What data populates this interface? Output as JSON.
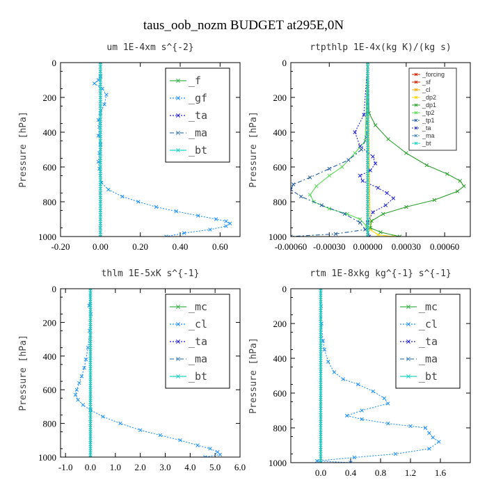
{
  "page": {
    "title": "taus_oob_nozm  BUDGET at295E,0N"
  },
  "chart_data": [
    {
      "type": "line",
      "title": "um   1E-4xm s^{-2}",
      "ylabel": "Pressure [hPa]",
      "xlim": [
        -0.2,
        0.7
      ],
      "ylim": [
        1000,
        0
      ],
      "xticks": [
        "-0.20",
        "0.00",
        "0.20",
        "0.40",
        "0.60"
      ],
      "xtick_values": [
        -0.2,
        0.0,
        0.2,
        0.4,
        0.6
      ],
      "yticks": [
        "0",
        "200",
        "400",
        "600",
        "800",
        "1000"
      ],
      "ytick_values": [
        0,
        200,
        400,
        600,
        800,
        1000
      ],
      "legend": {
        "placement": "top-right",
        "style": "big",
        "entries": [
          "_f",
          "_gf",
          "_ta",
          "_ma",
          "_bt"
        ]
      },
      "series": [
        {
          "name": "_f",
          "color": "#3cb34a",
          "style": "solid",
          "x": [
            0,
            0
          ],
          "y": [
            0,
            1000
          ]
        },
        {
          "name": "_gf",
          "color": "#1e90ff",
          "style": "dotted",
          "x": [
            0.0,
            0.0,
            -0.01,
            -0.03,
            0.01,
            0.03,
            0.02,
            0.0,
            -0.01,
            -0.005,
            -0.01,
            0.0,
            -0.005,
            -0.01,
            -0.005,
            0.0,
            0.005,
            0.04,
            0.11,
            0.19,
            0.28,
            0.38,
            0.49,
            0.58,
            0.63,
            0.65,
            0.63,
            0.55,
            0.42,
            0.33
          ],
          "y": [
            0,
            80,
            100,
            120,
            150,
            185,
            240,
            290,
            330,
            370,
            420,
            470,
            520,
            570,
            610,
            650,
            690,
            730,
            770,
            800,
            830,
            855,
            880,
            900,
            912,
            925,
            940,
            960,
            980,
            1000
          ]
        },
        {
          "name": "_ta",
          "color": "#2222dd",
          "style": "dotted",
          "x": [
            0,
            0
          ],
          "y": [
            0,
            1000
          ]
        },
        {
          "name": "_ma",
          "color": "#4682b4",
          "style": "dashdot",
          "x": [
            0,
            0
          ],
          "y": [
            0,
            1000
          ]
        },
        {
          "name": "_bt",
          "color": "#22d3c5",
          "style": "solid",
          "x": [
            0,
            0
          ],
          "y": [
            0,
            1000
          ]
        }
      ]
    },
    {
      "type": "line",
      "title": "rtpthlp   1E-4x(kg K)/(kg s)",
      "ylabel": "Pressure [hPa]",
      "xlim": [
        -0.0006,
        0.0008
      ],
      "ylim": [
        1000,
        0
      ],
      "xticks": [
        "-0.00060",
        "-0.00030",
        "0.00000",
        "0.00030",
        "0.00060"
      ],
      "xtick_values": [
        -0.0006,
        -0.0003,
        0.0,
        0.0003,
        0.0006
      ],
      "yticks": [
        "0",
        "200",
        "400",
        "600",
        "800",
        "1000"
      ],
      "ytick_values": [
        0,
        200,
        400,
        600,
        800,
        1000
      ],
      "legend": {
        "placement": "top-right",
        "style": "small",
        "entries": [
          "_forcing",
          "_sf",
          "_cl",
          "_dp2",
          "_dp1",
          "_tp2",
          "_tp1",
          "_ta",
          "_ma",
          "_bt"
        ]
      },
      "series": [
        {
          "name": "_forcing",
          "color": "#cc2200",
          "style": "solid",
          "x": [
            0,
            0
          ],
          "y": [
            0,
            1000
          ]
        },
        {
          "name": "_sf",
          "color": "#cc2200",
          "style": "solid",
          "x": [
            0,
            0
          ],
          "y": [
            0,
            1000
          ]
        },
        {
          "name": "_cl",
          "color": "#ffa500",
          "style": "solid",
          "x": [
            0,
            0
          ],
          "y": [
            0,
            1000
          ]
        },
        {
          "name": "_dp2",
          "color": "#ffd700",
          "style": "solid",
          "x": [
            0,
            2e-05,
            8e-05,
            0.0002
          ],
          "y": [
            0,
            960,
            990,
            1000
          ]
        },
        {
          "name": "_dp1",
          "color": "#2ca02c",
          "style": "solid",
          "x": [
            0,
            1e-05,
            6e-05,
            0.00016,
            0.0003,
            0.00046,
            0.00062,
            0.00072,
            0.00075,
            0.0007,
            0.00052,
            0.0003,
            0.00012,
            3e-05,
            2e-05,
            0.0001,
            0.00025
          ],
          "y": [
            0,
            290,
            360,
            440,
            520,
            590,
            640,
            680,
            710,
            740,
            790,
            830,
            870,
            910,
            950,
            975,
            1000
          ]
        },
        {
          "name": "_tp2",
          "color": "#55dd55",
          "style": "solid",
          "x": [
            0,
            -2e-05,
            -0.0001,
            -0.0002,
            -0.0003,
            -0.0004,
            -0.00045,
            -0.00042,
            -0.0003,
            -0.00016,
            -6e-05,
            -1e-05,
            0
          ],
          "y": [
            0,
            450,
            520,
            600,
            650,
            710,
            760,
            800,
            840,
            870,
            900,
            940,
            1000
          ]
        },
        {
          "name": "_tp1",
          "color": "#1f5aa6",
          "style": "dashdot",
          "x": [
            0,
            -1e-05,
            -5e-05,
            -0.00015,
            -0.0003,
            -0.00045,
            -0.00058,
            -0.0006,
            -0.00052,
            -0.00036,
            -0.00018,
            -6e-05,
            -2e-05,
            -0.00025,
            -0.0006
          ],
          "y": [
            0,
            430,
            500,
            560,
            610,
            660,
            700,
            730,
            770,
            820,
            870,
            920,
            960,
            985,
            1000
          ]
        },
        {
          "name": "_ta",
          "color": "#2222dd",
          "style": "dotted",
          "x": [
            0,
            -3e-05,
            -0.0001,
            -6e-05,
            4e-05,
            6e-05,
            2e-05,
            -6e-05,
            -4e-05,
            8e-05,
            0.00015,
            0.0002,
            0.00014,
            4e-05,
            0.0,
            1e-05
          ],
          "y": [
            0,
            300,
            400,
            480,
            540,
            580,
            620,
            650,
            680,
            720,
            750,
            780,
            820,
            860,
            920,
            1000
          ]
        },
        {
          "name": "_ma",
          "color": "#4682b4",
          "style": "dashdot",
          "x": [
            0,
            0
          ],
          "y": [
            0,
            1000
          ]
        },
        {
          "name": "_bt",
          "color": "#22d3c5",
          "style": "solid",
          "x": [
            0,
            0
          ],
          "y": [
            0,
            1000
          ]
        }
      ]
    },
    {
      "type": "line",
      "title": "thlm   1E-5xK s^{-1}",
      "ylabel": "Pressure [hPa]",
      "xlim": [
        -1.2,
        6.0
      ],
      "ylim": [
        1000,
        0
      ],
      "xticks": [
        "-1.0",
        "0.0",
        "1.0",
        "2.0",
        "3.0",
        "4.0",
        "5.0",
        "6.0"
      ],
      "xtick_values": [
        -1.0,
        0.0,
        1.0,
        2.0,
        3.0,
        4.0,
        5.0,
        6.0
      ],
      "yticks": [
        "0",
        "200",
        "400",
        "600",
        "800",
        "1000"
      ],
      "ytick_values": [
        0,
        200,
        400,
        600,
        800,
        1000
      ],
      "legend": {
        "placement": "top-right",
        "style": "big",
        "entries": [
          "_mc",
          "_cl",
          "_ta",
          "_ma",
          "_bt"
        ]
      },
      "series": [
        {
          "name": "_mc",
          "color": "#3cb34a",
          "style": "solid",
          "x": [
            0,
            0
          ],
          "y": [
            0,
            1000
          ]
        },
        {
          "name": "_cl",
          "color": "#1e90ff",
          "style": "dotted",
          "x": [
            0.0,
            -0.05,
            0.02,
            -0.03,
            -0.1,
            -0.18,
            -0.25,
            -0.35,
            -0.45,
            -0.55,
            -0.6,
            -0.5,
            -0.3,
            0.0,
            0.5,
            1.2,
            2.0,
            2.8,
            3.6,
            4.3,
            4.8,
            5.1,
            5.2,
            4.6
          ],
          "y": [
            0,
            100,
            150,
            250,
            350,
            420,
            470,
            520,
            560,
            600,
            630,
            660,
            690,
            720,
            760,
            800,
            840,
            870,
            900,
            930,
            950,
            970,
            985,
            1000
          ]
        },
        {
          "name": "_ta",
          "color": "#2222dd",
          "style": "dotted",
          "x": [
            0,
            0
          ],
          "y": [
            0,
            1000
          ]
        },
        {
          "name": "_ma",
          "color": "#4682b4",
          "style": "dashdot",
          "x": [
            0,
            0
          ],
          "y": [
            0,
            1000
          ]
        },
        {
          "name": "_bt",
          "color": "#22d3c5",
          "style": "solid",
          "x": [
            0,
            0
          ],
          "y": [
            0,
            1000
          ]
        }
      ]
    },
    {
      "type": "line",
      "title": "rtm   1E-8xkg kg^{-1} s^{-1}",
      "ylabel": "Pressure [hPa]",
      "xlim": [
        -0.4,
        2.0
      ],
      "ylim": [
        1000,
        0
      ],
      "xticks": [
        "0.0",
        "0.4",
        "0.8",
        "1.2",
        "1.6"
      ],
      "xtick_values": [
        0.0,
        0.4,
        0.8,
        1.2,
        1.6
      ],
      "yticks": [
        "0",
        "200",
        "400",
        "600",
        "800",
        "1000"
      ],
      "ytick_values": [
        0,
        200,
        400,
        600,
        800,
        1000
      ],
      "legend": {
        "placement": "top-right",
        "style": "big",
        "entries": [
          "_mc",
          "_cl",
          "_ta",
          "_ma",
          "_bt"
        ]
      },
      "series": [
        {
          "name": "_mc",
          "color": "#3cb34a",
          "style": "solid",
          "x": [
            0,
            0
          ],
          "y": [
            0,
            1000
          ]
        },
        {
          "name": "_cl",
          "color": "#1e90ff",
          "style": "dotted",
          "x": [
            0.0,
            0.005,
            0.01,
            0.03,
            0.05,
            0.1,
            0.18,
            0.3,
            0.5,
            0.7,
            0.85,
            0.9,
            0.55,
            0.35,
            0.55,
            0.9,
            1.2,
            1.4,
            1.45,
            1.5,
            1.58,
            1.45,
            1.0,
            0.45,
            -0.05,
            0.4
          ],
          "y": [
            0,
            100,
            200,
            300,
            350,
            420,
            480,
            520,
            550,
            590,
            630,
            660,
            700,
            730,
            750,
            775,
            790,
            800,
            830,
            855,
            880,
            920,
            950,
            970,
            990,
            1000
          ]
        },
        {
          "name": "_ta",
          "color": "#2222dd",
          "style": "dotted",
          "x": [
            0,
            0
          ],
          "y": [
            0,
            1000
          ]
        },
        {
          "name": "_ma",
          "color": "#4682b4",
          "style": "dashdot",
          "x": [
            0,
            0
          ],
          "y": [
            0,
            1000
          ]
        },
        {
          "name": "_bt",
          "color": "#22d3c5",
          "style": "solid",
          "x": [
            0,
            0
          ],
          "y": [
            0,
            1000
          ]
        }
      ]
    }
  ]
}
